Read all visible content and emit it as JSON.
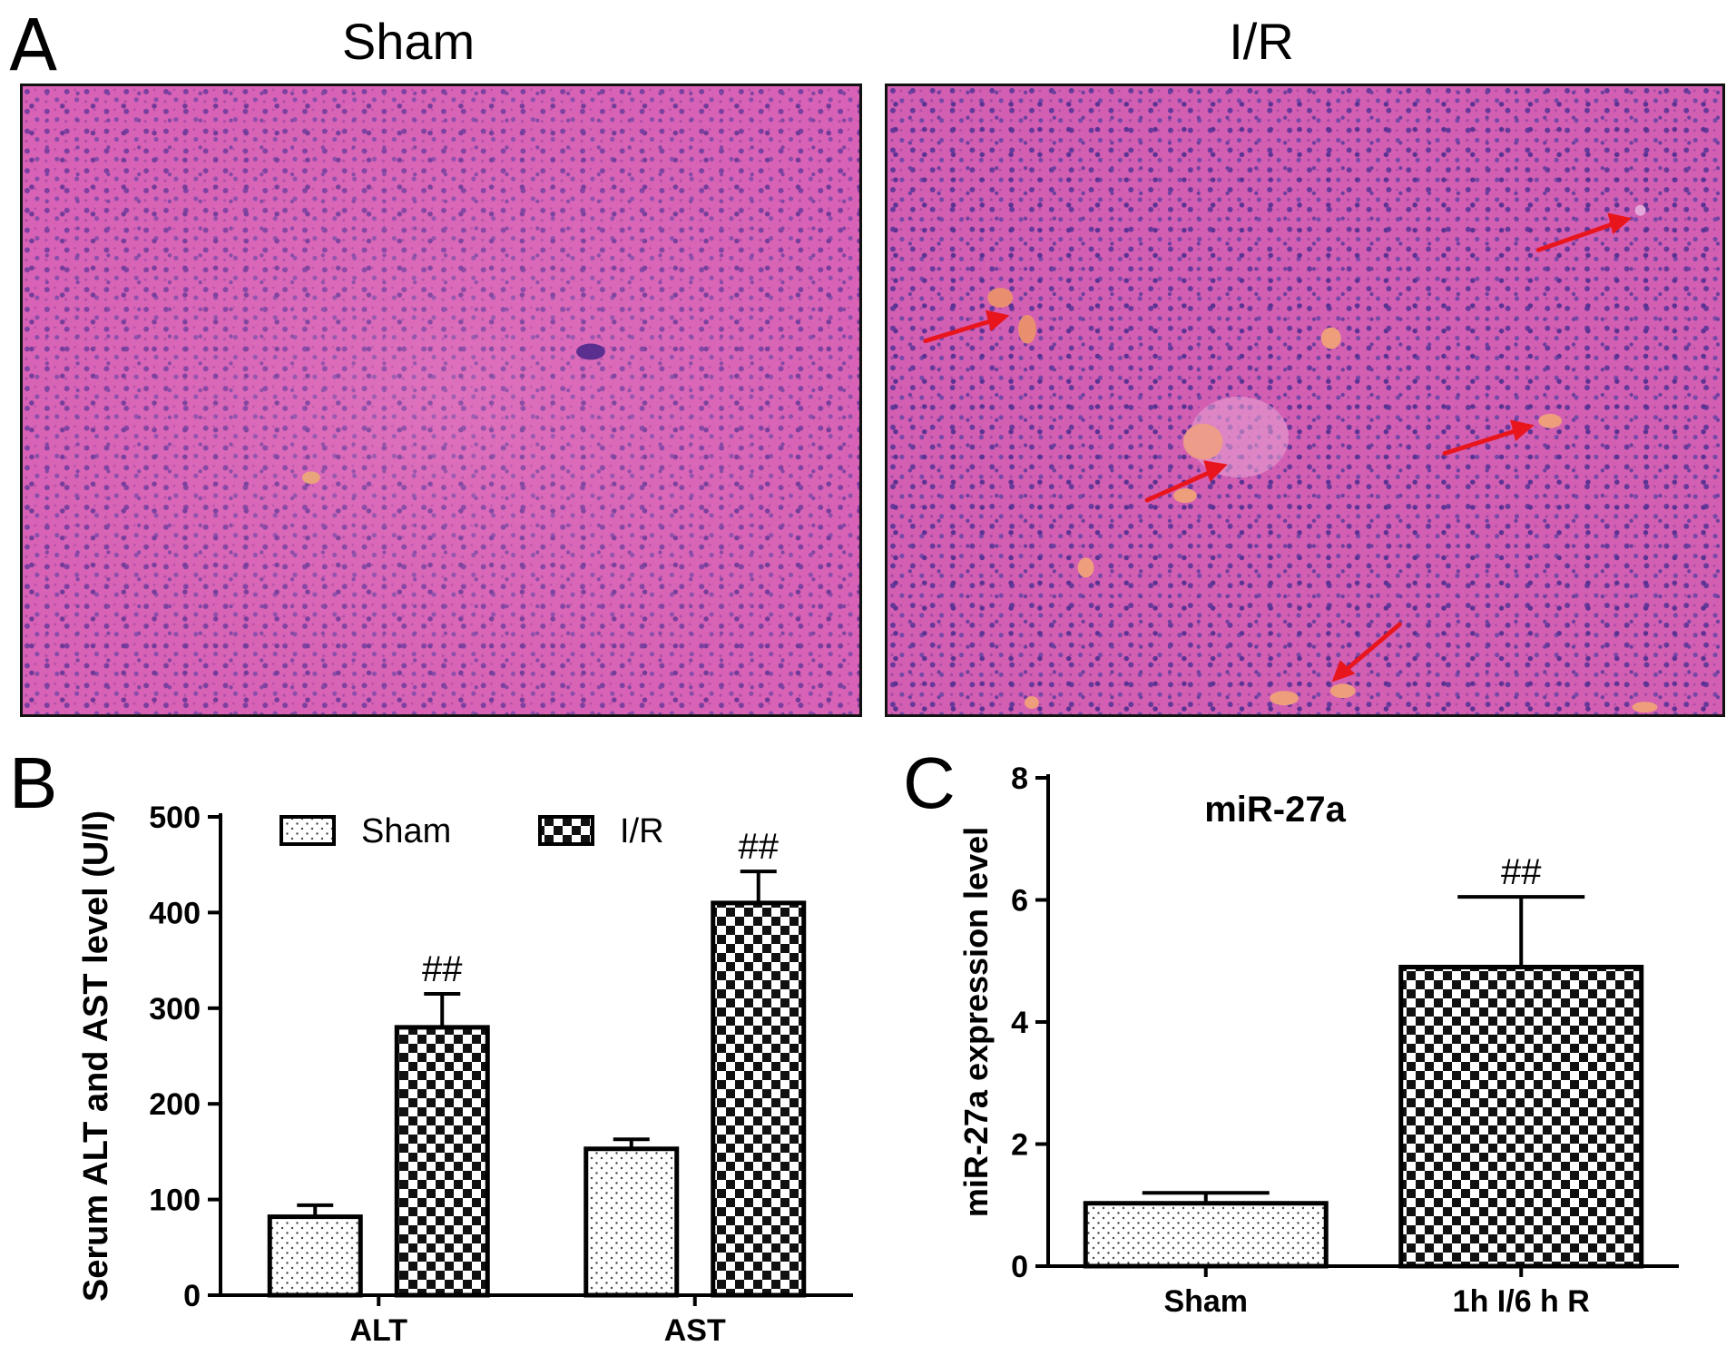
{
  "panel_a": {
    "letter": "A",
    "images": [
      {
        "title": "Sham"
      },
      {
        "title": "I/R"
      }
    ]
  },
  "chart_data": [
    {
      "panel": "B",
      "type": "bar",
      "title": "",
      "xlabel": "",
      "ylabel": "Serum ALT and AST level (U/l)",
      "ylim": [
        0,
        500
      ],
      "yticks": [
        0,
        100,
        200,
        300,
        400,
        500
      ],
      "categories": [
        "ALT",
        "AST"
      ],
      "series": [
        {
          "name": "Sham",
          "pattern": "dots",
          "values": [
            82,
            153
          ],
          "errors": [
            12,
            10
          ]
        },
        {
          "name": "I/R",
          "pattern": "checker",
          "values": [
            280,
            410
          ],
          "errors": [
            35,
            33
          ]
        }
      ],
      "annotations": [
        {
          "series": 1,
          "category": 0,
          "text": "##"
        },
        {
          "series": 1,
          "category": 1,
          "text": "##"
        }
      ],
      "legend": "top",
      "grid": false
    },
    {
      "panel": "C",
      "type": "bar",
      "title": "miR-27a",
      "xlabel": "",
      "ylabel": "miR-27a expression level",
      "ylim": [
        0,
        8
      ],
      "yticks": [
        0,
        2,
        4,
        6,
        8
      ],
      "categories": [
        "Sham",
        "1h I/6 h R"
      ],
      "series": [
        {
          "patterns": [
            "dots",
            "checker"
          ],
          "values": [
            1.03,
            4.9
          ],
          "errors": [
            0.17,
            1.15
          ]
        }
      ],
      "annotations": [
        {
          "series": 0,
          "category": 1,
          "text": "##"
        }
      ],
      "legend": "none",
      "grid": false
    }
  ]
}
